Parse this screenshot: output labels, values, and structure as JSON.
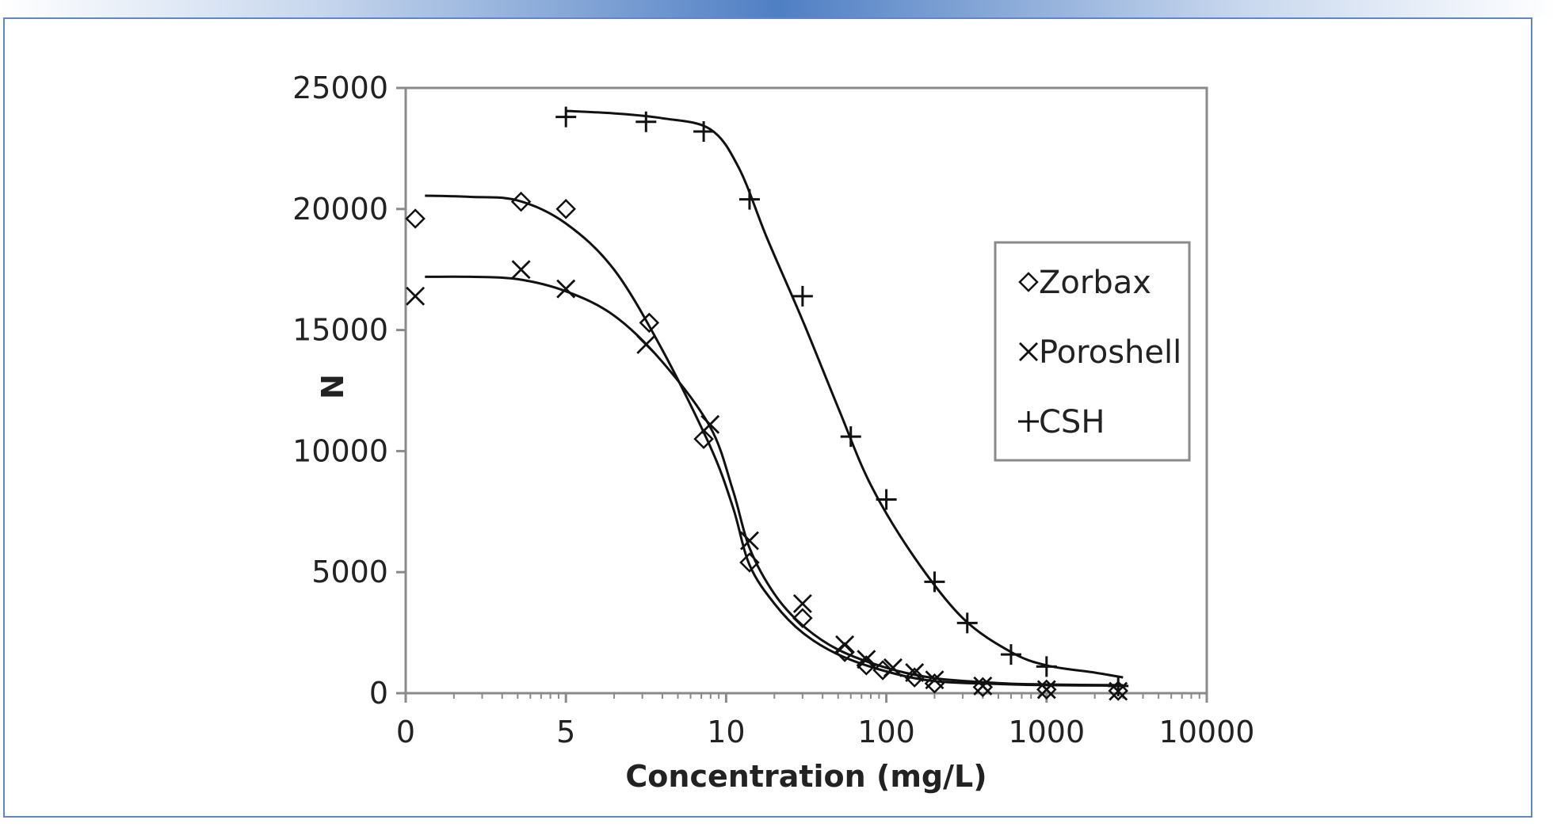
{
  "chart_data": {
    "type": "scatter",
    "xlabel": "Concentration (mg/L)",
    "ylabel": "N",
    "x_scale": "log-like (piecewise: 0, 5, 10, 100, 1000, 10000)",
    "x_tick_labels": [
      "0",
      "5",
      "10",
      "100",
      "1000",
      "10000"
    ],
    "y_ticks": [
      0,
      5000,
      10000,
      15000,
      20000,
      25000
    ],
    "ylim": [
      0,
      25000
    ],
    "grid": false,
    "legend_position": "right",
    "series": [
      {
        "name": "Zorbax",
        "marker": "diamond",
        "points": [
          [
            0.3,
            19600
          ],
          [
            3.6,
            20300
          ],
          [
            5,
            20000
          ],
          [
            7.6,
            15300
          ],
          [
            9.3,
            10500
          ],
          [
            14,
            5400
          ],
          [
            30,
            3100
          ],
          [
            55,
            1700
          ],
          [
            75,
            1150
          ],
          [
            95,
            950
          ],
          [
            150,
            650
          ],
          [
            200,
            400
          ],
          [
            400,
            250
          ],
          [
            1000,
            150
          ],
          [
            2800,
            100
          ]
        ],
        "fit": [
          [
            0.6,
            20550
          ],
          [
            2,
            20500
          ],
          [
            3.5,
            20350
          ],
          [
            5,
            19400
          ],
          [
            6.5,
            17500
          ],
          [
            8,
            14200
          ],
          [
            9.5,
            10200
          ],
          [
            11,
            7700
          ],
          [
            14,
            5300
          ],
          [
            20,
            3700
          ],
          [
            30,
            2500
          ],
          [
            50,
            1600
          ],
          [
            100,
            900
          ],
          [
            200,
            500
          ],
          [
            500,
            380
          ],
          [
            1000,
            330
          ],
          [
            3000,
            310
          ]
        ]
      },
      {
        "name": "Poroshell",
        "marker": "x",
        "points": [
          [
            0.3,
            16400
          ],
          [
            3.6,
            17500
          ],
          [
            5,
            16700
          ],
          [
            7.5,
            14400
          ],
          [
            9.5,
            11100
          ],
          [
            14,
            6300
          ],
          [
            30,
            3700
          ],
          [
            55,
            2000
          ],
          [
            75,
            1400
          ],
          [
            110,
            1050
          ],
          [
            150,
            850
          ],
          [
            200,
            550
          ],
          [
            400,
            300
          ],
          [
            1000,
            150
          ],
          [
            2800,
            80
          ]
        ],
        "fit": [
          [
            0.6,
            17200
          ],
          [
            2,
            17200
          ],
          [
            3.5,
            17100
          ],
          [
            5,
            16600
          ],
          [
            6.5,
            15600
          ],
          [
            8,
            13700
          ],
          [
            9.5,
            11000
          ],
          [
            11,
            8400
          ],
          [
            14,
            6000
          ],
          [
            20,
            4100
          ],
          [
            30,
            2800
          ],
          [
            50,
            1800
          ],
          [
            100,
            1050
          ],
          [
            200,
            620
          ],
          [
            500,
            420
          ],
          [
            1000,
            360
          ],
          [
            3000,
            330
          ]
        ]
      },
      {
        "name": "CSH",
        "marker": "plus",
        "points": [
          [
            5,
            23800
          ],
          [
            7.5,
            23600
          ],
          [
            9.3,
            23200
          ],
          [
            14,
            20400
          ],
          [
            30,
            16400
          ],
          [
            60,
            10600
          ],
          [
            100,
            8000
          ],
          [
            200,
            4600
          ],
          [
            320,
            2900
          ],
          [
            600,
            1600
          ],
          [
            1000,
            1100
          ],
          [
            2800,
            300
          ]
        ],
        "fit": [
          [
            5,
            24050
          ],
          [
            6.5,
            23950
          ],
          [
            8,
            23750
          ],
          [
            9.5,
            23300
          ],
          [
            12,
            21700
          ],
          [
            18,
            18800
          ],
          [
            30,
            15400
          ],
          [
            50,
            11800
          ],
          [
            80,
            8600
          ],
          [
            150,
            5600
          ],
          [
            300,
            3100
          ],
          [
            600,
            1700
          ],
          [
            1000,
            1150
          ],
          [
            2000,
            850
          ],
          [
            3000,
            650
          ]
        ]
      }
    ]
  }
}
